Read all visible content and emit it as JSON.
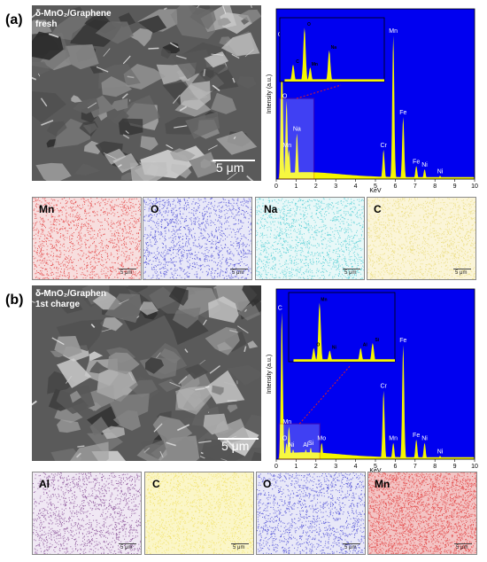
{
  "panels": [
    {
      "label": "(a)",
      "sem_title_line1": "δ-MnO₂/Graphene",
      "sem_title_line2": "fresh",
      "sem_scale": "5 μm",
      "maps": [
        {
          "element": "Mn",
          "color": "#e03030",
          "bg": "#f7dede",
          "scale": "5 μm"
        },
        {
          "element": "O",
          "color": "#3a3ad0",
          "bg": "#e8e8f8",
          "scale": "5 μm"
        },
        {
          "element": "Na",
          "color": "#40c8d0",
          "bg": "#e8f8f8",
          "scale": "5 μm"
        },
        {
          "element": "C",
          "color": "#e8d870",
          "bg": "#fbf5d8",
          "scale": "5 μm"
        }
      ],
      "eds": {
        "ylabel": "Intensity (a.u.)",
        "xlabel": "KeV",
        "xticks": [
          "0",
          "1",
          "2",
          "3",
          "4",
          "5",
          "6",
          "7",
          "8",
          "9",
          "10"
        ],
        "peaks_main": [
          {
            "label": "C",
            "x": 0.28,
            "h": 0.86
          },
          {
            "label": "O",
            "x": 0.52,
            "h": 0.48
          },
          {
            "label": "Mn",
            "x": 0.64,
            "h": 0.18
          },
          {
            "label": "Na",
            "x": 1.04,
            "h": 0.28
          },
          {
            "label": "Cr",
            "x": 5.41,
            "h": 0.18
          },
          {
            "label": "Mn",
            "x": 5.9,
            "h": 0.88
          },
          {
            "label": "Fe",
            "x": 6.4,
            "h": 0.38
          },
          {
            "label": "Fe",
            "x": 7.06,
            "h": 0.08
          },
          {
            "label": "Ni",
            "x": 7.48,
            "h": 0.06
          },
          {
            "label": "Ni",
            "x": 8.26,
            "h": 0.02
          }
        ],
        "inset_peaks": [
          {
            "label": "C",
            "x": 0.28,
            "h": 0.3
          },
          {
            "label": "O",
            "x": 0.52,
            "h": 0.95
          },
          {
            "label": "Mn",
            "x": 0.64,
            "h": 0.25
          },
          {
            "label": "Na",
            "x": 1.04,
            "h": 0.55
          }
        ],
        "inset_xmax": 2.2
      }
    },
    {
      "label": "(b)",
      "sem_title_line1": "δ-MnO₂/Graphen",
      "sem_title_line2": "1st charge",
      "sem_scale": "5 μm",
      "maps": [
        {
          "element": "Al",
          "color": "#7a3a8a",
          "bg": "#f0e8f4",
          "scale": "5 μm"
        },
        {
          "element": "C",
          "color": "#f0e060",
          "bg": "#fbf6c8",
          "scale": "5 μm"
        },
        {
          "element": "O",
          "color": "#3a3ad0",
          "bg": "#e8e8f8",
          "scale": "5 μm"
        },
        {
          "element": "Mn",
          "color": "#e03030",
          "bg": "#f3c4c4",
          "scale": "5 μm"
        }
      ],
      "eds": {
        "ylabel": "Intensity (a.u.)",
        "xlabel": "KeV",
        "xticks": [
          "0",
          "1",
          "2",
          "3",
          "4",
          "5",
          "6",
          "7",
          "8",
          "9",
          "10"
        ],
        "peaks_main": [
          {
            "label": "C",
            "x": 0.28,
            "h": 0.9
          },
          {
            "label": "O",
            "x": 0.52,
            "h": 0.1
          },
          {
            "label": "Mn",
            "x": 0.64,
            "h": 0.2
          },
          {
            "label": "Ni",
            "x": 0.85,
            "h": 0.06
          },
          {
            "label": "Al",
            "x": 1.49,
            "h": 0.06
          },
          {
            "label": "Si",
            "x": 1.74,
            "h": 0.07
          },
          {
            "label": "Mo",
            "x": 2.29,
            "h": 0.1
          },
          {
            "label": "Cr",
            "x": 5.41,
            "h": 0.42
          },
          {
            "label": "Mn",
            "x": 5.9,
            "h": 0.1
          },
          {
            "label": "Fe",
            "x": 6.4,
            "h": 0.7
          },
          {
            "label": "Fe",
            "x": 7.06,
            "h": 0.12
          },
          {
            "label": "Ni",
            "x": 7.48,
            "h": 0.1
          },
          {
            "label": "Ni",
            "x": 8.26,
            "h": 0.02
          }
        ],
        "inset_peaks": [
          {
            "label": "Mn",
            "x": 0.64,
            "h": 0.95
          },
          {
            "label": "O",
            "x": 0.52,
            "h": 0.22
          },
          {
            "label": "Ni",
            "x": 0.85,
            "h": 0.18
          },
          {
            "label": "Al",
            "x": 1.49,
            "h": 0.22
          },
          {
            "label": "Si",
            "x": 1.74,
            "h": 0.3
          }
        ],
        "inset_xmax": 2.2
      }
    }
  ]
}
